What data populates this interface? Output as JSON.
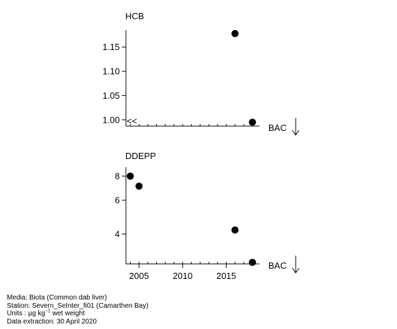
{
  "chart_data": [
    {
      "type": "scatter",
      "title": "HCB",
      "x_range": [
        2003.5,
        2018.8
      ],
      "ylim": [
        0.987,
        1.185
      ],
      "y_ticks": [
        1.0,
        1.05,
        1.1,
        1.15
      ],
      "y_tick_labels": [
        "1.00",
        "1.05",
        "1.10",
        "1.15"
      ],
      "points": [
        {
          "x": 2016,
          "y": 1.178
        },
        {
          "x": 2018,
          "y": 0.995
        }
      ],
      "censored_marker": "<<",
      "reference_label": "BAC"
    },
    {
      "type": "scatter",
      "title": "DDEPP",
      "x_range": [
        2003.5,
        2018.8
      ],
      "log_scale": true,
      "ylim": [
        2.8,
        8.9
      ],
      "y_ticks": [
        4,
        6,
        8
      ],
      "y_tick_labels": [
        "4",
        "6",
        "8"
      ],
      "x_ticks": [
        2005,
        2010,
        2015
      ],
      "x_tick_labels": [
        "2005",
        "2010",
        "2015"
      ],
      "points": [
        {
          "x": 2004,
          "y": 8.0
        },
        {
          "x": 2005,
          "y": 7.1
        },
        {
          "x": 2016,
          "y": 4.2
        },
        {
          "x": 2018,
          "y": 2.85
        }
      ],
      "reference_label": "BAC"
    }
  ],
  "footer": {
    "media": "Media: Biota (Common dab liver)",
    "station": "Station: Severn_SeInter_fi01 (Camarthen Bay)",
    "units_prefix": "Units : µg kg",
    "units_exp": "−1",
    "units_suffix": " wet weight",
    "extraction": "Data extraction: 30 April 2020"
  }
}
